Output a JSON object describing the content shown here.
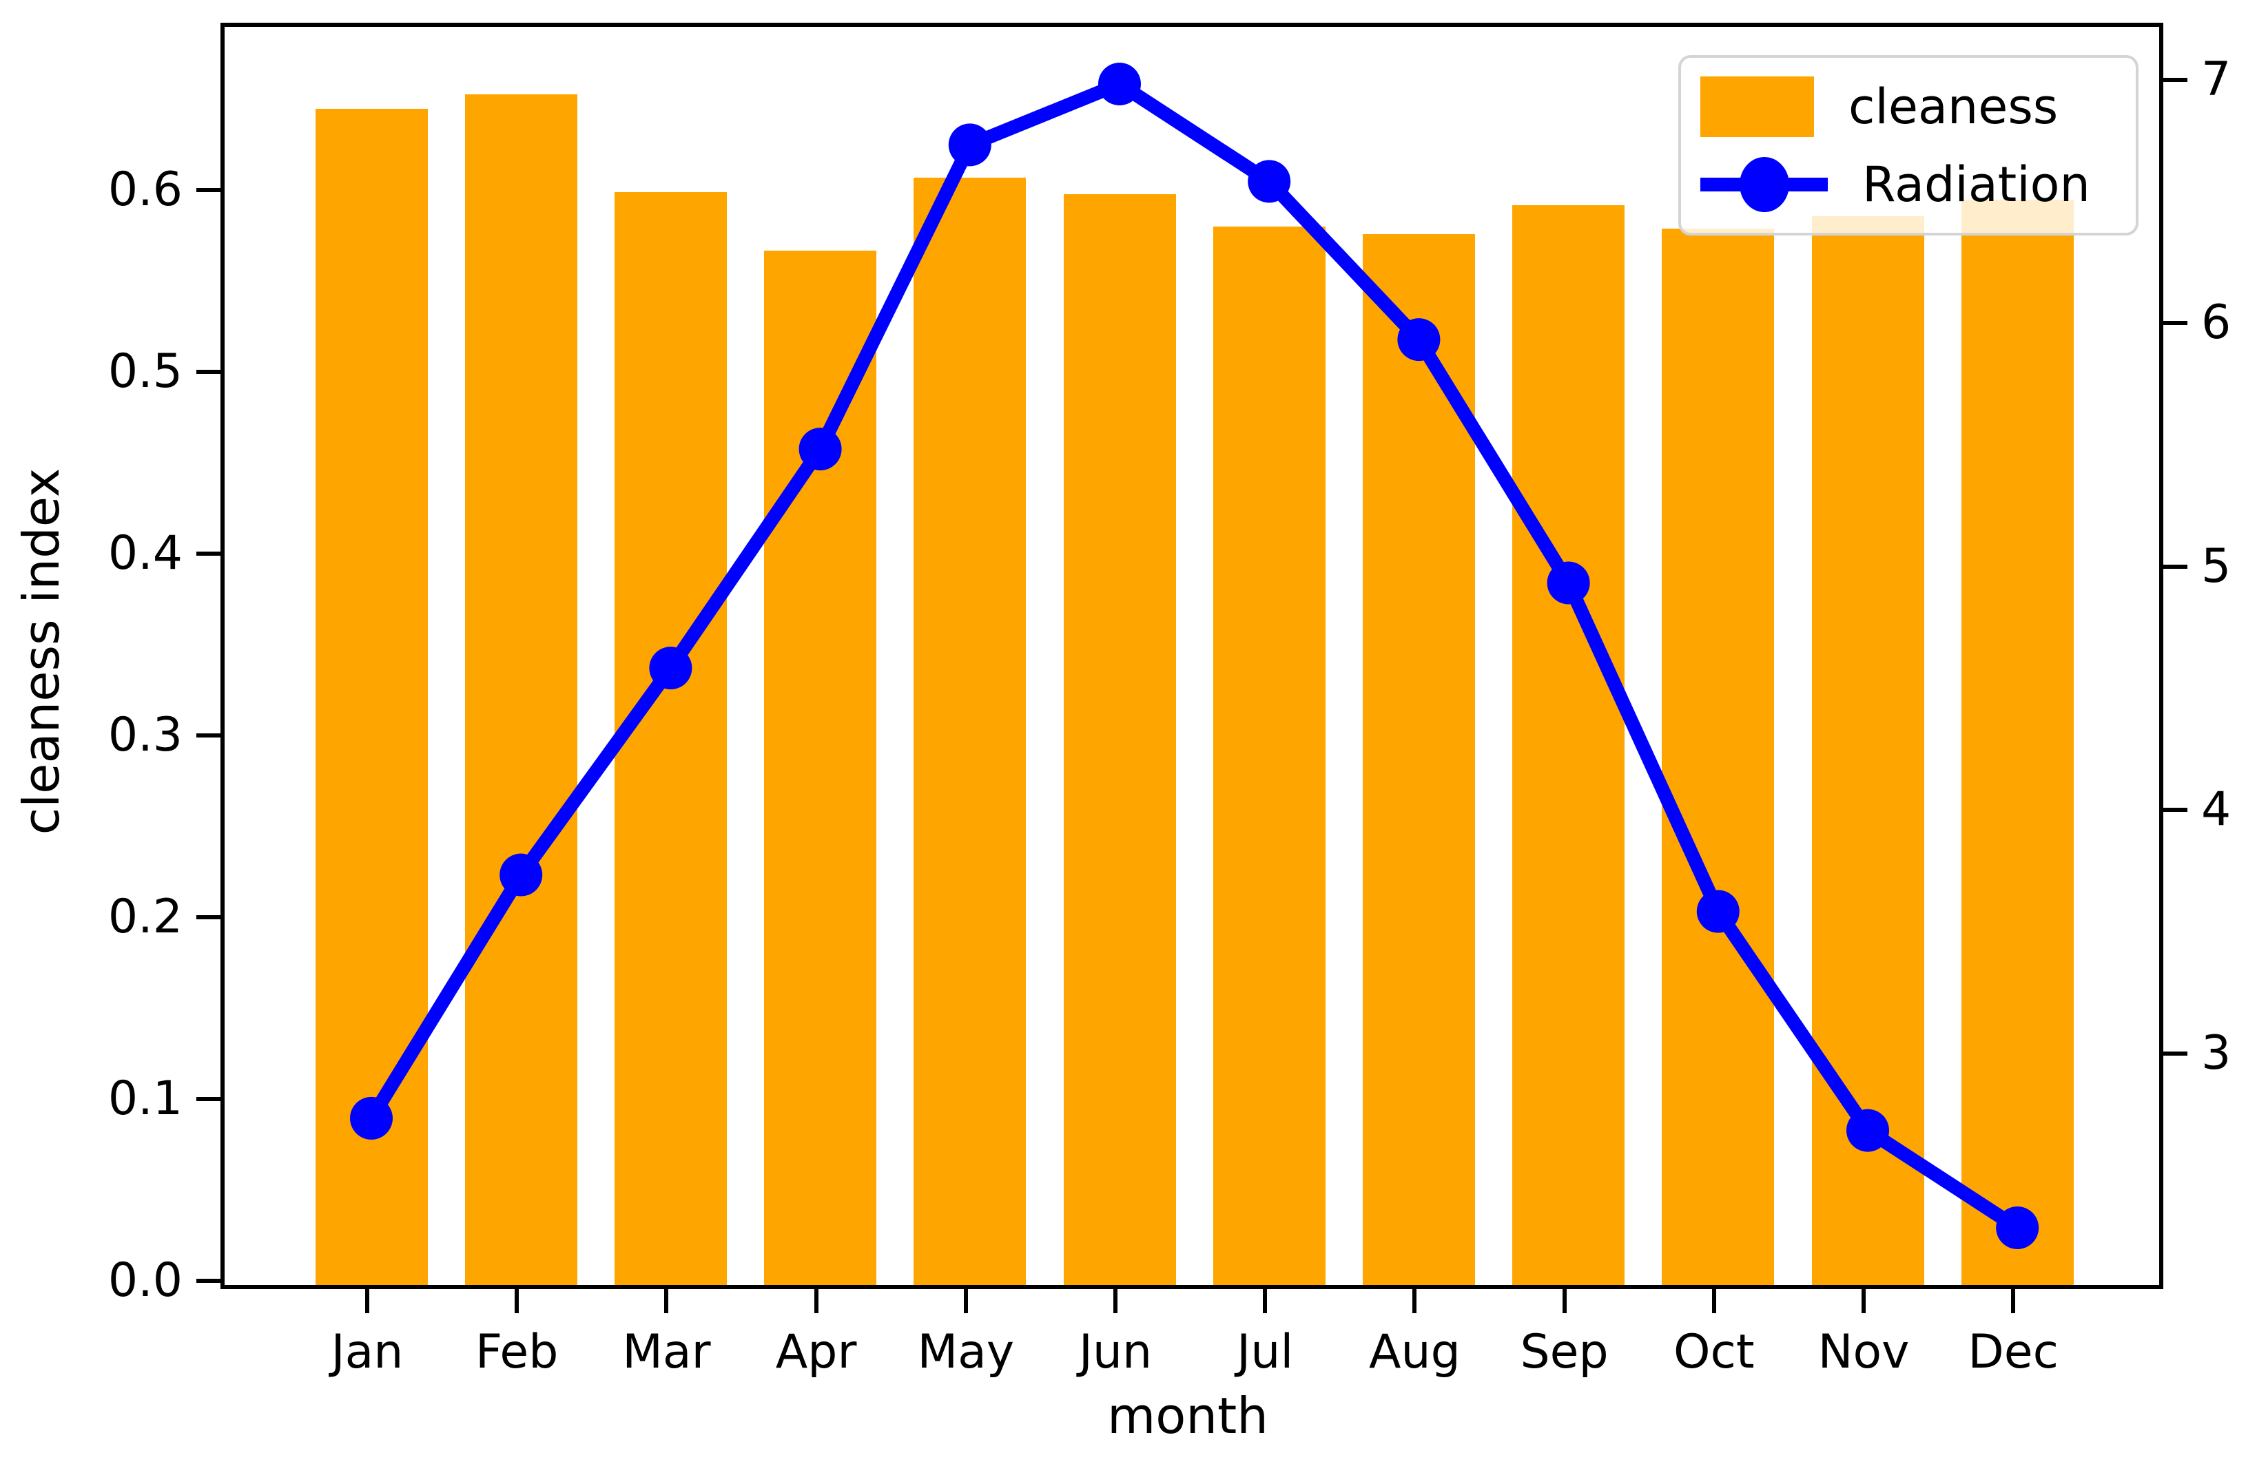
{
  "figure": {
    "background": "#ffffff"
  },
  "axes": {
    "xlabel": "month",
    "ylabel_left": "cleaness index",
    "x_ticklabels": [
      "Jan",
      "Feb",
      "Mar",
      "Apr",
      "May",
      "Jun",
      "Jul",
      "Aug",
      "Sep",
      "Oct",
      "Nov",
      "Dec"
    ],
    "y_ticklabels_left": [
      "0.0",
      "0.1",
      "0.2",
      "0.3",
      "0.4",
      "0.5",
      "0.6"
    ],
    "y_ticklabels_right": [
      "3",
      "4",
      "5",
      "6",
      "7"
    ]
  },
  "legend": {
    "items": [
      {
        "label": "cleaness",
        "type": "bar",
        "color": "#FFA500"
      },
      {
        "label": "Radiation",
        "type": "line",
        "color": "#0000FF",
        "marker": "circle"
      }
    ],
    "position": "upper right"
  },
  "chart_data": {
    "type": "combo",
    "categories": [
      "Jan",
      "Feb",
      "Mar",
      "Apr",
      "May",
      "Jun",
      "Jul",
      "Aug",
      "Sep",
      "Oct",
      "Nov",
      "Dec"
    ],
    "series": [
      {
        "name": "cleaness",
        "type": "bar",
        "y_axis": "left",
        "color": "#FFA500",
        "values": [
          0.647,
          0.655,
          0.601,
          0.569,
          0.609,
          0.6,
          0.582,
          0.578,
          0.594,
          0.581,
          0.588,
          0.597
        ]
      },
      {
        "name": "Radiation",
        "type": "line",
        "y_axis": "right",
        "color": "#0000FF",
        "marker": "circle",
        "values": [
          2.75,
          3.75,
          4.6,
          5.5,
          6.75,
          7.0,
          6.6,
          5.95,
          4.95,
          3.6,
          2.7,
          2.3
        ]
      }
    ],
    "title": "",
    "xlabel": "month",
    "ylabel_left": "cleaness index",
    "ylabel_right": "",
    "ylim_left": [
      0,
      0.692
    ],
    "ylim_right": [
      2.065,
      7.235
    ],
    "yticks_left": [
      0.0,
      0.1,
      0.2,
      0.3,
      0.4,
      0.5,
      0.6
    ],
    "yticks_right": [
      3,
      4,
      5,
      6,
      7
    ],
    "grid": false,
    "legend_position": "upper right",
    "bar_width_fraction": 0.75
  }
}
